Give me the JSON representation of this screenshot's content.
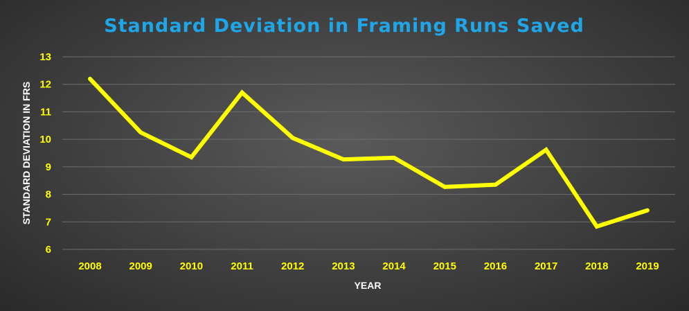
{
  "chart_data": {
    "type": "line",
    "title": "Standard Deviation in Framing Runs Saved",
    "xlabel": "YEAR",
    "ylabel": "STANDARD DEVIATION IN FRS",
    "categories": [
      "2008",
      "2009",
      "2010",
      "2011",
      "2012",
      "2013",
      "2014",
      "2015",
      "2016",
      "2017",
      "2018",
      "2019"
    ],
    "series": [
      {
        "values": [
          12.2,
          10.25,
          9.35,
          11.7,
          10.05,
          9.27,
          9.33,
          8.27,
          8.35,
          9.62,
          6.83,
          7.42
        ]
      }
    ],
    "ylim": [
      6,
      13
    ],
    "yticks": [
      6,
      7,
      8,
      9,
      10,
      11,
      12,
      13
    ],
    "grid": true,
    "legend": "none"
  },
  "colors": {
    "title": "#1fa6e8",
    "line": "#ffff00",
    "tick_labels": "#ffff00",
    "axis_labels": "#ffffff",
    "grid": "#6e6e6e"
  }
}
